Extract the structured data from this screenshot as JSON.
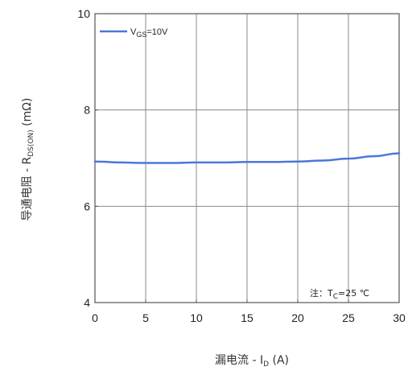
{
  "chart_data": {
    "type": "line",
    "xlabel": {
      "main": "漏电流 - I",
      "sub": "D",
      "unit": " (A)"
    },
    "ylabel": {
      "main": "导通电阻 - R",
      "sub": "DS(ON)",
      "unit": " (mΩ)"
    },
    "xlim": [
      0,
      30
    ],
    "ylim": [
      4,
      10
    ],
    "xticks": [
      0,
      5,
      10,
      15,
      20,
      25,
      30
    ],
    "yticks": [
      4,
      6,
      8,
      10
    ],
    "grid": true,
    "legend_position": "top-left",
    "note": {
      "prefix": "注：",
      "main": "T",
      "sub": "C",
      "rest": "=25 ℃"
    },
    "series": [
      {
        "name": {
          "main": "V",
          "sub": "GS",
          "rest": "=10V"
        },
        "color": "#4a78d8",
        "x": [
          0,
          2.5,
          5,
          7.5,
          10,
          12.5,
          15,
          17.5,
          20,
          22.5,
          25,
          27.5,
          30
        ],
        "y": [
          6.93,
          6.91,
          6.9,
          6.9,
          6.91,
          6.91,
          6.92,
          6.92,
          6.93,
          6.95,
          6.99,
          7.04,
          7.1
        ]
      }
    ]
  }
}
